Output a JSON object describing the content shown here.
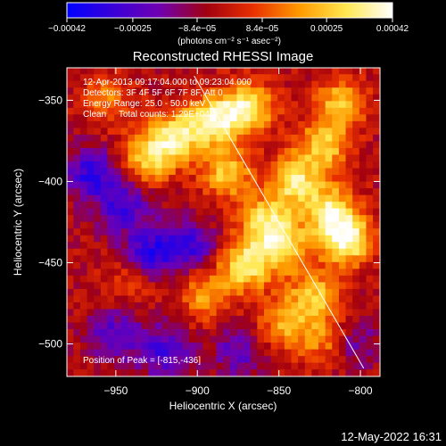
{
  "chart_data": {
    "type": "heatmap",
    "title": "Reconstructed RHESSI Image",
    "xlabel": "Heliocentric X (arcsec)",
    "ylabel": "Heliocentric Y (arcsec)",
    "xlim": [
      -980,
      -788
    ],
    "ylim": [
      -520,
      -330
    ],
    "x_ticks": [
      -950,
      -900,
      -850,
      -800
    ],
    "x_tick_labels": [
      "−950",
      "−900",
      "−850",
      "−800"
    ],
    "y_ticks": [
      -350,
      -400,
      -450,
      -500
    ],
    "y_tick_labels": [
      "−350",
      "−400",
      "−450",
      "−500"
    ],
    "colorbar": {
      "range": [
        -0.00042,
        0.00042
      ],
      "ticks": [
        -0.00042,
        -0.00025,
        -8.4e-05,
        8.4e-05,
        0.00025,
        0.00042
      ],
      "tick_labels": [
        "−0.00042",
        "−0.00025",
        "−8.4e−05",
        "8.4e−05",
        "0.00025",
        "0.00042"
      ],
      "unit_text": "(photons cm⁻² s⁻¹ asec⁻²)",
      "colormap": [
        "#0000ff",
        "#3a00d8",
        "#7000b0",
        "#a20010",
        "#e83000",
        "#ff9a00",
        "#ffe850",
        "#ffffff"
      ]
    },
    "annotations": [
      "12-Apr-2013 09:17:04.000 to 09:23:04.000",
      "Detectors: 3F 4F 5F 6F 7F 8F, Att 0",
      "Energy Range: 25.0 - 50.0 keV",
      "Clean     Total counts: 1.29E+04"
    ],
    "peak_label": "Position of Peak = [-815,-436]",
    "peak_position": [
      -815,
      -436
    ],
    "limb_line": {
      "x": [
        -902,
        -798
      ],
      "y": [
        -335,
        -515
      ]
    },
    "hot_spots": [
      {
        "x": -930,
        "y": -385,
        "value": 0.00033
      },
      {
        "x": -912,
        "y": -372,
        "value": 0.00036
      },
      {
        "x": -888,
        "y": -362,
        "value": 0.00038
      },
      {
        "x": -868,
        "y": -355,
        "value": 0.00035
      },
      {
        "x": -882,
        "y": -395,
        "value": 0.0003
      },
      {
        "x": -858,
        "y": -425,
        "value": 0.00033
      },
      {
        "x": -870,
        "y": -452,
        "value": 0.00036
      },
      {
        "x": -846,
        "y": -440,
        "value": 0.00031
      },
      {
        "x": -840,
        "y": -400,
        "value": 0.00035
      },
      {
        "x": -822,
        "y": -378,
        "value": 0.0003
      },
      {
        "x": -818,
        "y": -418,
        "value": 0.00034
      },
      {
        "x": -808,
        "y": -436,
        "value": 0.00042
      },
      {
        "x": -828,
        "y": -470,
        "value": 0.00028
      },
      {
        "x": -846,
        "y": -488,
        "value": 0.00026
      },
      {
        "x": -812,
        "y": -352,
        "value": 0.00028
      },
      {
        "x": -820,
        "y": -498,
        "value": 0.00022
      },
      {
        "x": -955,
        "y": -350,
        "value": 0.00018
      },
      {
        "x": -940,
        "y": -460,
        "value": 0.00014
      },
      {
        "x": -895,
        "y": -470,
        "value": 0.00024
      }
    ],
    "cold_spots": [
      {
        "x": -965,
        "y": -395,
        "value": -0.00028
      },
      {
        "x": -945,
        "y": -415,
        "value": -0.00025
      },
      {
        "x": -930,
        "y": -445,
        "value": -0.0003
      },
      {
        "x": -905,
        "y": -440,
        "value": -0.00026
      },
      {
        "x": -950,
        "y": -495,
        "value": -0.00022
      },
      {
        "x": -920,
        "y": -505,
        "value": -0.00024
      },
      {
        "x": -875,
        "y": -505,
        "value": -0.00018
      },
      {
        "x": -805,
        "y": -500,
        "value": -0.00018
      }
    ],
    "grid": false
  },
  "footer": {
    "timestamp": "12-May-2022 16:31"
  }
}
